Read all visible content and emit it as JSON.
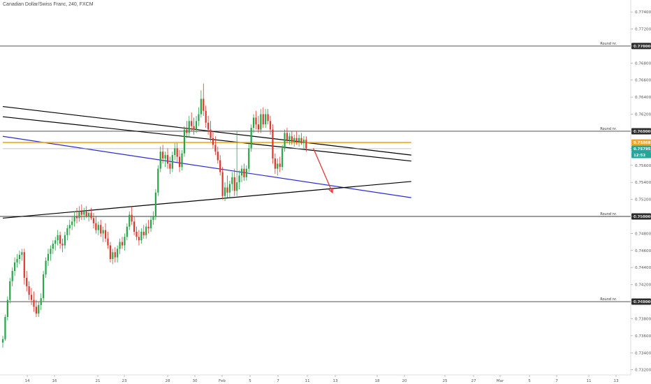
{
  "chart_data": {
    "type": "candlestick",
    "title": "Canadian Dollar/Swiss Franc, 240, FXCM",
    "y_axis": {
      "ticks": [
        "0.77400",
        "0.77200",
        "0.77000",
        "0.76800",
        "0.76600",
        "0.76400",
        "0.76200",
        "0.76000",
        "0.75800",
        "0.75600",
        "0.75400",
        "0.75200",
        "0.75000",
        "0.74800",
        "0.74600",
        "0.74400",
        "0.74200",
        "0.74000",
        "0.73800",
        "0.73600",
        "0.73400",
        "0.73200"
      ],
      "ylim": [
        0.7314,
        0.7754
      ],
      "position": "right"
    },
    "x_axis": {
      "ticks": [
        "14",
        "16",
        "21",
        "23",
        "28",
        "30",
        "Feb",
        "5",
        "7",
        "11",
        "13",
        "18",
        "20",
        "25",
        "27",
        "Mar",
        "5",
        "7",
        "11",
        "13"
      ]
    },
    "round_levels": [
      {
        "label": "Round nr.",
        "value": "0.77000",
        "y": 0.77
      },
      {
        "label": "Round nr.",
        "value": "0.76000",
        "y": 0.76
      },
      {
        "label": "Round nr.",
        "value": "0.75000",
        "y": 0.75
      },
      {
        "label": "Round nr.",
        "value": "0.74000",
        "y": 0.74
      }
    ],
    "badges": [
      {
        "value": "0.75868",
        "color": "#f5a623"
      },
      {
        "value": "0.75795",
        "color": "#26a69a"
      },
      {
        "value": "12:52",
        "color": "#26a69a"
      }
    ],
    "candles": [
      {
        "date": "Jan 12",
        "o": 0.7352,
        "h": 0.736,
        "l": 0.7346,
        "c": 0.7356
      },
      {
        "date": "Jan 12",
        "o": 0.7356,
        "h": 0.7385,
        "l": 0.7354,
        "c": 0.7382
      },
      {
        "date": "Jan 12",
        "o": 0.7382,
        "h": 0.7406,
        "l": 0.7378,
        "c": 0.7402
      },
      {
        "date": "Jan 13",
        "o": 0.7402,
        "h": 0.7428,
        "l": 0.7398,
        "c": 0.7424
      },
      {
        "date": "Jan 13",
        "o": 0.7424,
        "h": 0.744,
        "l": 0.7418,
        "c": 0.7436
      },
      {
        "date": "Jan 13",
        "o": 0.7436,
        "h": 0.7452,
        "l": 0.743,
        "c": 0.7446
      },
      {
        "date": "Jan 13",
        "o": 0.7446,
        "h": 0.7456,
        "l": 0.744,
        "c": 0.745
      },
      {
        "date": "Jan 13",
        "o": 0.745,
        "h": 0.746,
        "l": 0.7444,
        "c": 0.7455
      },
      {
        "date": "Jan 14",
        "o": 0.7455,
        "h": 0.7462,
        "l": 0.7448,
        "c": 0.7458
      },
      {
        "date": "Jan 14",
        "o": 0.7458,
        "h": 0.7462,
        "l": 0.742,
        "c": 0.7428
      },
      {
        "date": "Jan 14",
        "o": 0.7428,
        "h": 0.7436,
        "l": 0.7412,
        "c": 0.7418
      },
      {
        "date": "Jan 14",
        "o": 0.7418,
        "h": 0.7424,
        "l": 0.7402,
        "c": 0.7408
      },
      {
        "date": "Jan 14",
        "o": 0.7408,
        "h": 0.7416,
        "l": 0.7396,
        "c": 0.7402
      },
      {
        "date": "Jan 15",
        "o": 0.7402,
        "h": 0.7412,
        "l": 0.7388,
        "c": 0.7394
      },
      {
        "date": "Jan 15",
        "o": 0.7394,
        "h": 0.7402,
        "l": 0.7382,
        "c": 0.7386
      },
      {
        "date": "Jan 15",
        "o": 0.7386,
        "h": 0.74,
        "l": 0.7382,
        "c": 0.7396
      },
      {
        "date": "Jan 15",
        "o": 0.7396,
        "h": 0.741,
        "l": 0.739,
        "c": 0.7404
      },
      {
        "date": "Jan 15",
        "o": 0.7404,
        "h": 0.7436,
        "l": 0.74,
        "c": 0.7432
      },
      {
        "date": "Jan 16",
        "o": 0.7432,
        "h": 0.7452,
        "l": 0.7428,
        "c": 0.7448
      },
      {
        "date": "Jan 16",
        "o": 0.7448,
        "h": 0.7462,
        "l": 0.7442,
        "c": 0.7456
      },
      {
        "date": "Jan 16",
        "o": 0.7456,
        "h": 0.7466,
        "l": 0.7448,
        "c": 0.7462
      },
      {
        "date": "Jan 16",
        "o": 0.7462,
        "h": 0.7472,
        "l": 0.7456,
        "c": 0.7468
      },
      {
        "date": "Jan 16",
        "o": 0.7468,
        "h": 0.7476,
        "l": 0.746,
        "c": 0.7472
      },
      {
        "date": "Jan 19",
        "o": 0.7472,
        "h": 0.7484,
        "l": 0.7466,
        "c": 0.7478
      },
      {
        "date": "Jan 19",
        "o": 0.7478,
        "h": 0.7482,
        "l": 0.7462,
        "c": 0.7468
      },
      {
        "date": "Jan 19",
        "o": 0.7468,
        "h": 0.7474,
        "l": 0.7458,
        "c": 0.7466
      },
      {
        "date": "Jan 19",
        "o": 0.7466,
        "h": 0.7482,
        "l": 0.7462,
        "c": 0.7478
      },
      {
        "date": "Jan 19",
        "o": 0.7478,
        "h": 0.749,
        "l": 0.7472,
        "c": 0.7486
      },
      {
        "date": "Jan 20",
        "o": 0.7486,
        "h": 0.7496,
        "l": 0.7478,
        "c": 0.749
      },
      {
        "date": "Jan 20",
        "o": 0.749,
        "h": 0.75,
        "l": 0.7484,
        "c": 0.7494
      },
      {
        "date": "Jan 20",
        "o": 0.7494,
        "h": 0.7506,
        "l": 0.7488,
        "c": 0.75
      },
      {
        "date": "Jan 20",
        "o": 0.75,
        "h": 0.751,
        "l": 0.7492,
        "c": 0.7498
      },
      {
        "date": "Jan 20",
        "o": 0.7498,
        "h": 0.7512,
        "l": 0.7494,
        "c": 0.7506
      },
      {
        "date": "Jan 21",
        "o": 0.7506,
        "h": 0.7514,
        "l": 0.7496,
        "c": 0.7502
      },
      {
        "date": "Jan 21",
        "o": 0.7502,
        "h": 0.751,
        "l": 0.7496,
        "c": 0.7506
      },
      {
        "date": "Jan 21",
        "o": 0.7506,
        "h": 0.7512,
        "l": 0.7498,
        "c": 0.75
      },
      {
        "date": "Jan 21",
        "o": 0.75,
        "h": 0.7508,
        "l": 0.7494,
        "c": 0.7504
      },
      {
        "date": "Jan 21",
        "o": 0.7504,
        "h": 0.751,
        "l": 0.7496,
        "c": 0.7498
      },
      {
        "date": "Jan 22",
        "o": 0.7498,
        "h": 0.7504,
        "l": 0.7486,
        "c": 0.7492
      },
      {
        "date": "Jan 22",
        "o": 0.7492,
        "h": 0.75,
        "l": 0.748,
        "c": 0.7484
      },
      {
        "date": "Jan 22",
        "o": 0.7484,
        "h": 0.7494,
        "l": 0.7478,
        "c": 0.749
      },
      {
        "date": "Jan 22",
        "o": 0.749,
        "h": 0.7496,
        "l": 0.7476,
        "c": 0.748
      },
      {
        "date": "Jan 22",
        "o": 0.748,
        "h": 0.7488,
        "l": 0.747,
        "c": 0.7484
      },
      {
        "date": "Jan 23",
        "o": 0.7484,
        "h": 0.7492,
        "l": 0.747,
        "c": 0.7474
      },
      {
        "date": "Jan 23",
        "o": 0.7474,
        "h": 0.7482,
        "l": 0.7462,
        "c": 0.7466
      },
      {
        "date": "Jan 23",
        "o": 0.7466,
        "h": 0.747,
        "l": 0.7446,
        "c": 0.745
      },
      {
        "date": "Jan 23",
        "o": 0.745,
        "h": 0.7462,
        "l": 0.7444,
        "c": 0.7458
      },
      {
        "date": "Jan 23",
        "o": 0.7458,
        "h": 0.7464,
        "l": 0.7446,
        "c": 0.7452
      },
      {
        "date": "Jan 26",
        "o": 0.7452,
        "h": 0.7466,
        "l": 0.7446,
        "c": 0.7462
      },
      {
        "date": "Jan 26",
        "o": 0.7462,
        "h": 0.7474,
        "l": 0.7456,
        "c": 0.747
      },
      {
        "date": "Jan 26",
        "o": 0.747,
        "h": 0.7476,
        "l": 0.7462,
        "c": 0.7466
      },
      {
        "date": "Jan 26",
        "o": 0.7466,
        "h": 0.748,
        "l": 0.746,
        "c": 0.7476
      },
      {
        "date": "Jan 26",
        "o": 0.7476,
        "h": 0.7492,
        "l": 0.7472,
        "c": 0.7488
      },
      {
        "date": "Jan 27",
        "o": 0.7488,
        "h": 0.7506,
        "l": 0.7484,
        "c": 0.7502
      },
      {
        "date": "Jan 27",
        "o": 0.7502,
        "h": 0.7512,
        "l": 0.749,
        "c": 0.7494
      },
      {
        "date": "Jan 27",
        "o": 0.7494,
        "h": 0.75,
        "l": 0.7478,
        "c": 0.7482
      },
      {
        "date": "Jan 27",
        "o": 0.7482,
        "h": 0.7488,
        "l": 0.7472,
        "c": 0.7476
      },
      {
        "date": "Jan 27",
        "o": 0.7476,
        "h": 0.7484,
        "l": 0.7466,
        "c": 0.7472
      },
      {
        "date": "Jan 28",
        "o": 0.7472,
        "h": 0.7486,
        "l": 0.7468,
        "c": 0.7482
      },
      {
        "date": "Jan 28",
        "o": 0.7482,
        "h": 0.749,
        "l": 0.7474,
        "c": 0.7478
      },
      {
        "date": "Jan 28",
        "o": 0.7478,
        "h": 0.7492,
        "l": 0.7474,
        "c": 0.7488
      },
      {
        "date": "Jan 28",
        "o": 0.7488,
        "h": 0.7496,
        "l": 0.748,
        "c": 0.7486
      },
      {
        "date": "Jan 28",
        "o": 0.7486,
        "h": 0.75,
        "l": 0.7482,
        "c": 0.7496
      },
      {
        "date": "Jan 29",
        "o": 0.7496,
        "h": 0.7506,
        "l": 0.749,
        "c": 0.75
      },
      {
        "date": "Jan 29",
        "o": 0.75,
        "h": 0.7532,
        "l": 0.7496,
        "c": 0.7528
      },
      {
        "date": "Jan 29",
        "o": 0.7528,
        "h": 0.756,
        "l": 0.7524,
        "c": 0.7556
      },
      {
        "date": "Jan 29",
        "o": 0.7556,
        "h": 0.7582,
        "l": 0.7552,
        "c": 0.7576
      },
      {
        "date": "Jan 29",
        "o": 0.7576,
        "h": 0.7584,
        "l": 0.7562,
        "c": 0.7568
      },
      {
        "date": "Jan 30",
        "o": 0.7568,
        "h": 0.7576,
        "l": 0.7558,
        "c": 0.7572
      },
      {
        "date": "Jan 30",
        "o": 0.7572,
        "h": 0.758,
        "l": 0.7556,
        "c": 0.7562
      },
      {
        "date": "Jan 30",
        "o": 0.7562,
        "h": 0.757,
        "l": 0.755,
        "c": 0.7556
      },
      {
        "date": "Jan 30",
        "o": 0.7556,
        "h": 0.7576,
        "l": 0.7552,
        "c": 0.7572
      },
      {
        "date": "Jan 30",
        "o": 0.7572,
        "h": 0.7586,
        "l": 0.7566,
        "c": 0.758
      },
      {
        "date": "Feb 2",
        "o": 0.758,
        "h": 0.7586,
        "l": 0.7564,
        "c": 0.757
      },
      {
        "date": "Feb 2",
        "o": 0.757,
        "h": 0.7578,
        "l": 0.7552,
        "c": 0.7558
      },
      {
        "date": "Feb 2",
        "o": 0.7558,
        "h": 0.7578,
        "l": 0.7554,
        "c": 0.7574
      },
      {
        "date": "Feb 2",
        "o": 0.7574,
        "h": 0.7606,
        "l": 0.757,
        "c": 0.7602
      },
      {
        "date": "Feb 2",
        "o": 0.7602,
        "h": 0.7612,
        "l": 0.7592,
        "c": 0.7598
      },
      {
        "date": "Feb 3",
        "o": 0.7598,
        "h": 0.7618,
        "l": 0.7594,
        "c": 0.7612
      },
      {
        "date": "Feb 3",
        "o": 0.7612,
        "h": 0.7622,
        "l": 0.76,
        "c": 0.7606
      },
      {
        "date": "Feb 3",
        "o": 0.7606,
        "h": 0.7616,
        "l": 0.7596,
        "c": 0.7602
      },
      {
        "date": "Feb 3",
        "o": 0.7602,
        "h": 0.7618,
        "l": 0.7598,
        "c": 0.7612
      },
      {
        "date": "Feb 3",
        "o": 0.7612,
        "h": 0.7628,
        "l": 0.7606,
        "c": 0.762
      },
      {
        "date": "Feb 4",
        "o": 0.762,
        "h": 0.7648,
        "l": 0.7616,
        "c": 0.7638
      },
      {
        "date": "Feb 4",
        "o": 0.7638,
        "h": 0.7656,
        "l": 0.7618,
        "c": 0.7624
      },
      {
        "date": "Feb 4",
        "o": 0.7624,
        "h": 0.763,
        "l": 0.7604,
        "c": 0.761
      },
      {
        "date": "Feb 4",
        "o": 0.761,
        "h": 0.7618,
        "l": 0.7596,
        "c": 0.7602
      },
      {
        "date": "Feb 4",
        "o": 0.7602,
        "h": 0.7612,
        "l": 0.7588,
        "c": 0.7592
      },
      {
        "date": "Feb 5",
        "o": 0.7592,
        "h": 0.76,
        "l": 0.758,
        "c": 0.7584
      },
      {
        "date": "Feb 5",
        "o": 0.7584,
        "h": 0.7594,
        "l": 0.7572,
        "c": 0.7576
      },
      {
        "date": "Feb 5",
        "o": 0.7576,
        "h": 0.7582,
        "l": 0.7562,
        "c": 0.7566
      },
      {
        "date": "Feb 5",
        "o": 0.7566,
        "h": 0.7572,
        "l": 0.7548,
        "c": 0.7552
      },
      {
        "date": "Feb 5",
        "o": 0.7552,
        "h": 0.7558,
        "l": 0.752,
        "c": 0.7524
      },
      {
        "date": "Feb 6",
        "o": 0.7524,
        "h": 0.754,
        "l": 0.7518,
        "c": 0.7534
      },
      {
        "date": "Feb 6",
        "o": 0.7534,
        "h": 0.7548,
        "l": 0.7522,
        "c": 0.7528
      },
      {
        "date": "Feb 6",
        "o": 0.7528,
        "h": 0.7542,
        "l": 0.7522,
        "c": 0.7538
      },
      {
        "date": "Feb 6",
        "o": 0.7538,
        "h": 0.7552,
        "l": 0.753,
        "c": 0.7546
      },
      {
        "date": "Feb 6",
        "o": 0.7546,
        "h": 0.7556,
        "l": 0.7524,
        "c": 0.753
      },
      {
        "date": "Feb 9",
        "o": 0.753,
        "h": 0.76,
        "l": 0.7524,
        "c": 0.754
      },
      {
        "date": "Feb 9",
        "o": 0.754,
        "h": 0.7554,
        "l": 0.7532,
        "c": 0.7548
      },
      {
        "date": "Feb 9",
        "o": 0.7548,
        "h": 0.756,
        "l": 0.754,
        "c": 0.7556
      },
      {
        "date": "Feb 9",
        "o": 0.7556,
        "h": 0.7562,
        "l": 0.7542,
        "c": 0.7546
      },
      {
        "date": "Feb 9",
        "o": 0.7546,
        "h": 0.756,
        "l": 0.7542,
        "c": 0.7556
      },
      {
        "date": "Feb 10",
        "o": 0.7556,
        "h": 0.7586,
        "l": 0.7552,
        "c": 0.758
      },
      {
        "date": "Feb 10",
        "o": 0.758,
        "h": 0.7608,
        "l": 0.7576,
        "c": 0.7604
      },
      {
        "date": "Feb 10",
        "o": 0.7604,
        "h": 0.762,
        "l": 0.7598,
        "c": 0.7616
      },
      {
        "date": "Feb 10",
        "o": 0.7616,
        "h": 0.7624,
        "l": 0.7602,
        "c": 0.7608
      },
      {
        "date": "Feb 10",
        "o": 0.7608,
        "h": 0.7618,
        "l": 0.7598,
        "c": 0.7602
      },
      {
        "date": "Feb 11",
        "o": 0.7602,
        "h": 0.7626,
        "l": 0.7598,
        "c": 0.762
      },
      {
        "date": "Feb 11",
        "o": 0.762,
        "h": 0.7628,
        "l": 0.7604,
        "c": 0.7608
      },
      {
        "date": "Feb 11",
        "o": 0.7608,
        "h": 0.7626,
        "l": 0.7604,
        "c": 0.762
      },
      {
        "date": "Feb 11",
        "o": 0.762,
        "h": 0.7626,
        "l": 0.7608,
        "c": 0.7612
      },
      {
        "date": "Feb 11",
        "o": 0.7612,
        "h": 0.7618,
        "l": 0.7596,
        "c": 0.7602
      },
      {
        "date": "Feb 12",
        "o": 0.7602,
        "h": 0.7608,
        "l": 0.7562,
        "c": 0.7568
      },
      {
        "date": "Feb 12",
        "o": 0.7568,
        "h": 0.7574,
        "l": 0.755,
        "c": 0.7556
      },
      {
        "date": "Feb 12",
        "o": 0.7556,
        "h": 0.7568,
        "l": 0.7548,
        "c": 0.7562
      },
      {
        "date": "Feb 12",
        "o": 0.7562,
        "h": 0.757,
        "l": 0.7552,
        "c": 0.7558
      },
      {
        "date": "Feb 12",
        "o": 0.7558,
        "h": 0.7584,
        "l": 0.7554,
        "c": 0.758
      },
      {
        "date": "Feb 13",
        "o": 0.758,
        "h": 0.7602,
        "l": 0.7576,
        "c": 0.7598
      },
      {
        "date": "Feb 13",
        "o": 0.7598,
        "h": 0.7604,
        "l": 0.7586,
        "c": 0.759
      },
      {
        "date": "Feb 13",
        "o": 0.759,
        "h": 0.7598,
        "l": 0.7584,
        "c": 0.7594
      },
      {
        "date": "Feb 13",
        "o": 0.7594,
        "h": 0.76,
        "l": 0.7584,
        "c": 0.7588
      },
      {
        "date": "Feb 13",
        "o": 0.7588,
        "h": 0.7596,
        "l": 0.7582,
        "c": 0.7592
      },
      {
        "date": "Feb 16",
        "o": 0.7592,
        "h": 0.76,
        "l": 0.7584,
        "c": 0.7588
      },
      {
        "date": "Feb 16",
        "o": 0.7588,
        "h": 0.7596,
        "l": 0.7582,
        "c": 0.7592
      },
      {
        "date": "Feb 16",
        "o": 0.7592,
        "h": 0.7598,
        "l": 0.7584,
        "c": 0.7586
      },
      {
        "date": "Feb 16",
        "o": 0.7586,
        "h": 0.7594,
        "l": 0.758,
        "c": 0.759
      },
      {
        "date": "Feb 16",
        "o": 0.759,
        "h": 0.7594,
        "l": 0.7576,
        "c": 0.758
      }
    ],
    "lines": [
      {
        "name": "upper-trendline-1",
        "color": "#000000",
        "p1": {
          "i": 0,
          "y": 0.7629
        },
        "p2": {
          "i": 171,
          "y": 0.7572
        }
      },
      {
        "name": "upper-trendline-2",
        "color": "#000000",
        "p1": {
          "i": 0,
          "y": 0.7617
        },
        "p2": {
          "i": 171,
          "y": 0.7565
        }
      },
      {
        "name": "blue-trendline",
        "color": "#2b2bd6",
        "p1": {
          "i": 0,
          "y": 0.7594
        },
        "p2": {
          "i": 171,
          "y": 0.7522
        }
      },
      {
        "name": "lower-trendline",
        "color": "#000000",
        "p1": {
          "i": 0,
          "y": 0.7498
        },
        "p2": {
          "i": 171,
          "y": 0.7541
        }
      },
      {
        "name": "orange-level",
        "color": "#f5a623",
        "p1": {
          "i": 0,
          "y": 0.75868
        },
        "p2": {
          "i": 171,
          "y": 0.75868
        }
      },
      {
        "name": "grey-level",
        "color": "#9aa3ad",
        "p1": {
          "i": 0,
          "y": 0.75795
        },
        "p2": {
          "i": 171,
          "y": 0.75795
        }
      }
    ],
    "arrow": {
      "color": "#e53935",
      "from": {
        "i": 130,
        "y": 0.758
      },
      "to": {
        "i": 138,
        "y": 0.7528
      }
    }
  }
}
